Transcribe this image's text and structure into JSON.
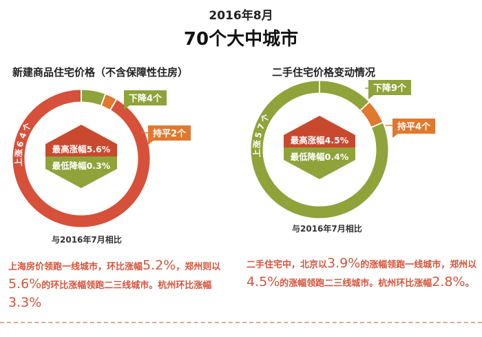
{
  "header": {
    "date": "2016年8月",
    "title": "70个大中城市"
  },
  "colors": {
    "rise": "#d6503a",
    "fall": "#8fa33a",
    "flat": "#e0782e",
    "diamond_dark": "#c9492f"
  },
  "chart_data": [
    {
      "type": "pie",
      "title": "新建商品住宅价格（不含保障性住房）",
      "slices": [
        {
          "name": "上涨",
          "value": 64,
          "label": "上涨64个",
          "color": "#d6503a"
        },
        {
          "name": "下降",
          "value": 4,
          "label": "下降4个",
          "color": "#8fa33a"
        },
        {
          "name": "持平",
          "value": 2,
          "label": "持平2个",
          "color": "#e0782e"
        }
      ],
      "diamond": {
        "top": "最高涨幅5.6%",
        "bottom": "最低降幅0.3%"
      },
      "compare": "与2016年7月相比"
    },
    {
      "type": "pie",
      "title": "二手住宅价格变动情况",
      "slices": [
        {
          "name": "上涨",
          "value": 57,
          "label": "上涨57个",
          "color": "#8fa33a"
        },
        {
          "name": "下降",
          "value": 9,
          "label": "下降9个",
          "color": "#8fa33a"
        },
        {
          "name": "持平",
          "value": 4,
          "label": "持平4个",
          "color": "#e0782e"
        }
      ],
      "diamond": {
        "top": "最高涨幅4.5%",
        "bottom": "最低降幅0.4%"
      },
      "compare": "与2016年7月相比"
    }
  ],
  "notes": {
    "left": {
      "p1": "上海房价领跑一线城市，环比涨幅",
      "v1": "5.2%",
      "p2": "，郑州则以",
      "v2": "5.6%",
      "p3": "的环比涨幅领跑二三线城市。杭州环比涨幅",
      "v3": "3.3%"
    },
    "right": {
      "p1": "二手住宅中，北京以",
      "v1": "3.9%",
      "p2": "的涨幅领跑一线城市，郑州以",
      "v2": "4.5%",
      "p3": "的涨幅领跑二三线城市。杭州环比涨幅",
      "v3": "2.8%",
      "p4": "。"
    }
  }
}
